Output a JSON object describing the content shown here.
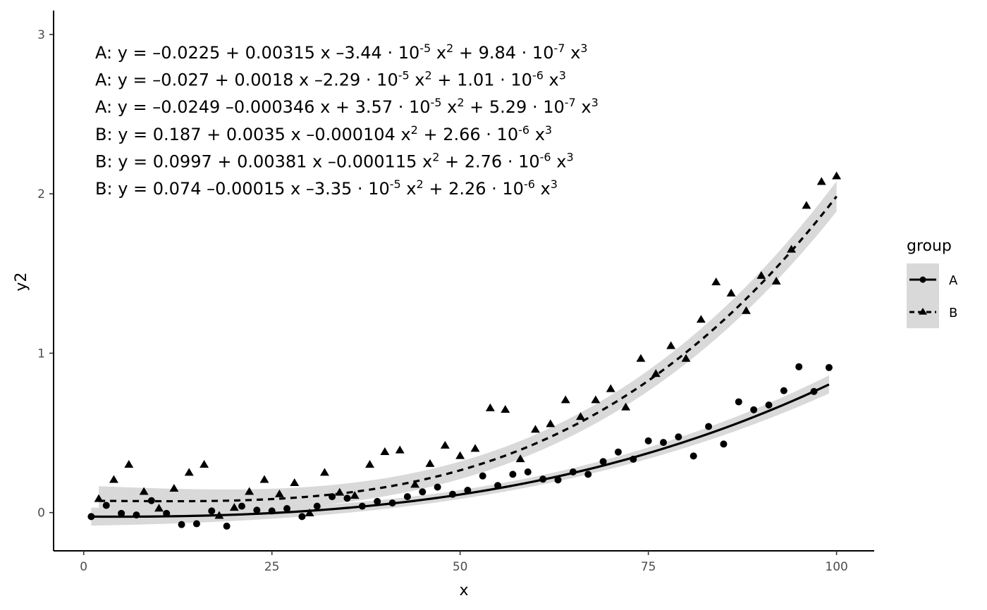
{
  "chart_data": {
    "type": "scatter",
    "xlabel": "x",
    "ylabel": "y2",
    "xlim": [
      -4,
      105
    ],
    "ylim": [
      -0.24,
      3.15
    ],
    "x_ticks": [
      0,
      25,
      50,
      75,
      100
    ],
    "y_ticks": [
      0,
      1,
      2,
      3
    ],
    "grid": false,
    "legend": {
      "title": "group",
      "position": "right",
      "entries": [
        "A",
        "B"
      ]
    },
    "colors": {
      "points": "#000000",
      "ribbon": "#d9d9d9",
      "axis": "#000000",
      "tick_text": "#4d4d4d"
    },
    "equations": [
      {
        "group": "A: ",
        "terms": [
          {
            "t": "y = "
          },
          {
            "t": "–0.0225"
          },
          {
            "t": " + "
          },
          {
            "t": "0.00315 x"
          },
          {
            "t": " –"
          },
          {
            "t": "3.44 · 10"
          },
          {
            "t": "-5",
            "sup": true
          },
          {
            "t": " x"
          },
          {
            "t": "2",
            "sup": true
          },
          {
            "t": " + "
          },
          {
            "t": "9.84 · 10"
          },
          {
            "t": "-7",
            "sup": true
          },
          {
            "t": " x"
          },
          {
            "t": "3",
            "sup": true
          }
        ]
      },
      {
        "group": "A: ",
        "terms": [
          {
            "t": "y = "
          },
          {
            "t": "–0.027"
          },
          {
            "t": " + "
          },
          {
            "t": "0.0018 x"
          },
          {
            "t": " –"
          },
          {
            "t": "2.29 · 10"
          },
          {
            "t": "-5",
            "sup": true
          },
          {
            "t": " x"
          },
          {
            "t": "2",
            "sup": true
          },
          {
            "t": " + "
          },
          {
            "t": "1.01 · 10"
          },
          {
            "t": "-6",
            "sup": true
          },
          {
            "t": " x"
          },
          {
            "t": "3",
            "sup": true
          }
        ]
      },
      {
        "group": "A: ",
        "terms": [
          {
            "t": "y = "
          },
          {
            "t": "–0.0249"
          },
          {
            "t": " –"
          },
          {
            "t": "0.000346 x"
          },
          {
            "t": " + "
          },
          {
            "t": "3.57 · 10"
          },
          {
            "t": "-5",
            "sup": true
          },
          {
            "t": " x"
          },
          {
            "t": "2",
            "sup": true
          },
          {
            "t": " + "
          },
          {
            "t": "5.29 · 10"
          },
          {
            "t": "-7",
            "sup": true
          },
          {
            "t": " x"
          },
          {
            "t": "3",
            "sup": true
          }
        ]
      },
      {
        "group": "B: ",
        "terms": [
          {
            "t": "y = "
          },
          {
            "t": "0.187"
          },
          {
            "t": " + "
          },
          {
            "t": "0.0035 x"
          },
          {
            "t": " –"
          },
          {
            "t": "0.000104 x"
          },
          {
            "t": "2",
            "sup": true
          },
          {
            "t": " + "
          },
          {
            "t": "2.66 · 10"
          },
          {
            "t": "-6",
            "sup": true
          },
          {
            "t": " x"
          },
          {
            "t": "3",
            "sup": true
          }
        ]
      },
      {
        "group": "B: ",
        "terms": [
          {
            "t": "y = "
          },
          {
            "t": "0.0997"
          },
          {
            "t": " + "
          },
          {
            "t": "0.00381 x"
          },
          {
            "t": " –"
          },
          {
            "t": "0.000115 x"
          },
          {
            "t": "2",
            "sup": true
          },
          {
            "t": " + "
          },
          {
            "t": "2.76 · 10"
          },
          {
            "t": "-6",
            "sup": true
          },
          {
            "t": " x"
          },
          {
            "t": "3",
            "sup": true
          }
        ]
      },
      {
        "group": "B: ",
        "terms": [
          {
            "t": "y = "
          },
          {
            "t": "0.074"
          },
          {
            "t": " –"
          },
          {
            "t": "0.00015 x"
          },
          {
            "t": " –"
          },
          {
            "t": "3.35 · 10"
          },
          {
            "t": "-5",
            "sup": true
          },
          {
            "t": " x"
          },
          {
            "t": "2",
            "sup": true
          },
          {
            "t": " + "
          },
          {
            "t": "2.26 · 10"
          },
          {
            "t": "-6",
            "sup": true
          },
          {
            "t": " x"
          },
          {
            "t": "3",
            "sup": true
          }
        ]
      }
    ],
    "series": [
      {
        "name": "A",
        "marker": "circle",
        "line": "solid",
        "fit": {
          "intercept": -0.0249,
          "b1": -0.000346,
          "b2": 3.57e-05,
          "b3": 5.29e-07
        },
        "fit_range": [
          1,
          99
        ],
        "points": [
          [
            1,
            -0.025
          ],
          [
            3,
            0.045
          ],
          [
            5,
            -0.005
          ],
          [
            7,
            -0.015
          ],
          [
            9,
            0.075
          ],
          [
            11,
            -0.005
          ],
          [
            13,
            -0.075
          ],
          [
            15,
            -0.07
          ],
          [
            17,
            0.01
          ],
          [
            19,
            -0.085
          ],
          [
            21,
            0.04
          ],
          [
            23,
            0.015
          ],
          [
            25,
            0.01
          ],
          [
            27,
            0.025
          ],
          [
            29,
            -0.025
          ],
          [
            31,
            0.04
          ],
          [
            33,
            0.1
          ],
          [
            35,
            0.09
          ],
          [
            37,
            0.04
          ],
          [
            39,
            0.07
          ],
          [
            41,
            0.06
          ],
          [
            43,
            0.1
          ],
          [
            45,
            0.13
          ],
          [
            47,
            0.16
          ],
          [
            49,
            0.115
          ],
          [
            51,
            0.14
          ],
          [
            53,
            0.23
          ],
          [
            55,
            0.17
          ],
          [
            57,
            0.24
          ],
          [
            59,
            0.255
          ],
          [
            61,
            0.21
          ],
          [
            63,
            0.205
          ],
          [
            65,
            0.255
          ],
          [
            67,
            0.24
          ],
          [
            69,
            0.32
          ],
          [
            71,
            0.38
          ],
          [
            73,
            0.335
          ],
          [
            75,
            0.45
          ],
          [
            77,
            0.44
          ],
          [
            79,
            0.475
          ],
          [
            81,
            0.355
          ],
          [
            83,
            0.54
          ],
          [
            85,
            0.43
          ],
          [
            87,
            0.695
          ],
          [
            89,
            0.645
          ],
          [
            91,
            0.675
          ],
          [
            93,
            0.765
          ],
          [
            95,
            0.915
          ],
          [
            97,
            0.76
          ],
          [
            99,
            0.91
          ]
        ]
      },
      {
        "name": "B",
        "marker": "triangle",
        "line": "dashed",
        "fit": {
          "intercept": 0.074,
          "b1": -0.00015,
          "b2": -3.35e-05,
          "b3": 2.26e-06
        },
        "fit_range": [
          2,
          100
        ],
        "points": [
          [
            2,
            0.085
          ],
          [
            4,
            0.205
          ],
          [
            6,
            0.3
          ],
          [
            8,
            0.13
          ],
          [
            10,
            0.025
          ],
          [
            12,
            0.15
          ],
          [
            14,
            0.25
          ],
          [
            16,
            0.3
          ],
          [
            18,
            -0.02
          ],
          [
            20,
            0.03
          ],
          [
            22,
            0.13
          ],
          [
            24,
            0.205
          ],
          [
            26,
            0.115
          ],
          [
            28,
            0.185
          ],
          [
            30,
            -0.005
          ],
          [
            32,
            0.25
          ],
          [
            34,
            0.125
          ],
          [
            36,
            0.105
          ],
          [
            38,
            0.3
          ],
          [
            40,
            0.38
          ],
          [
            42,
            0.39
          ],
          [
            44,
            0.175
          ],
          [
            46,
            0.305
          ],
          [
            48,
            0.42
          ],
          [
            50,
            0.355
          ],
          [
            52,
            0.4
          ],
          [
            54,
            0.655
          ],
          [
            56,
            0.645
          ],
          [
            58,
            0.335
          ],
          [
            60,
            0.52
          ],
          [
            62,
            0.555
          ],
          [
            64,
            0.705
          ],
          [
            66,
            0.6
          ],
          [
            68,
            0.705
          ],
          [
            70,
            0.775
          ],
          [
            72,
            0.66
          ],
          [
            74,
            0.965
          ],
          [
            76,
            0.87
          ],
          [
            78,
            1.045
          ],
          [
            80,
            0.965
          ],
          [
            82,
            1.21
          ],
          [
            84,
            1.445
          ],
          [
            86,
            1.375
          ],
          [
            88,
            1.265
          ],
          [
            90,
            1.485
          ],
          [
            92,
            1.45
          ],
          [
            94,
            1.65
          ],
          [
            96,
            1.925
          ],
          [
            98,
            2.075
          ],
          [
            100,
            2.11
          ]
        ]
      }
    ]
  }
}
